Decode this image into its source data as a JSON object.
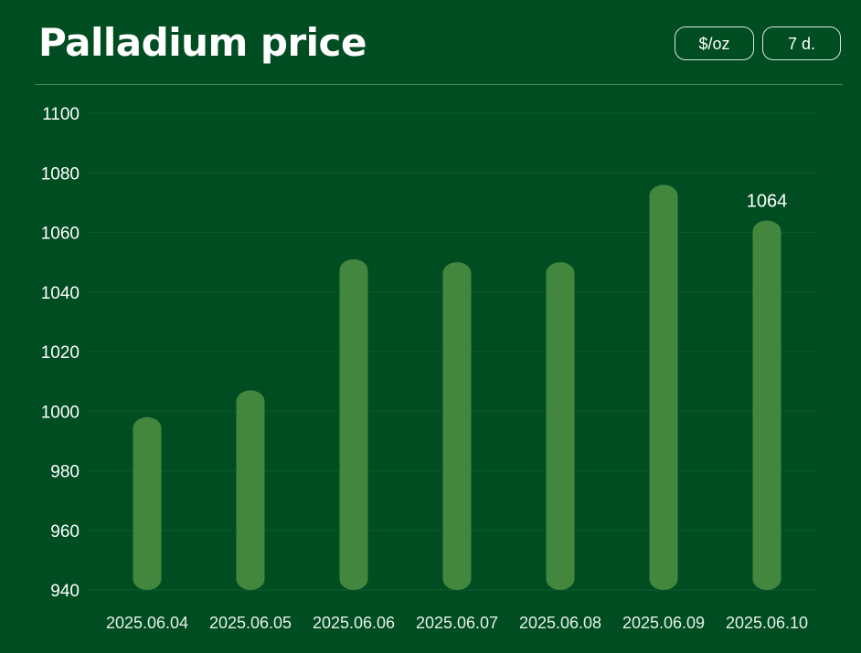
{
  "header": {
    "title": "Palladium price",
    "unit_label": "$/oz",
    "range_label": "7 d."
  },
  "colors": {
    "background": "#004d22",
    "bar": "#43873f",
    "grid": "#0d5a2c",
    "text": "#ffffff"
  },
  "chart_data": {
    "type": "bar",
    "categories": [
      "2025.06.04",
      "2025.06.05",
      "2025.06.06",
      "2025.06.07",
      "2025.06.08",
      "2025.06.09",
      "2025.06.10"
    ],
    "values": [
      998,
      1007,
      1051,
      1050,
      1050,
      1076,
      1064
    ],
    "ylim": [
      940,
      1100
    ],
    "yticks": [
      940,
      960,
      980,
      1000,
      1020,
      1040,
      1060,
      1080,
      1100
    ],
    "annotations": [
      {
        "category": "2025.06.10",
        "text": "1064"
      }
    ],
    "grid": true
  }
}
